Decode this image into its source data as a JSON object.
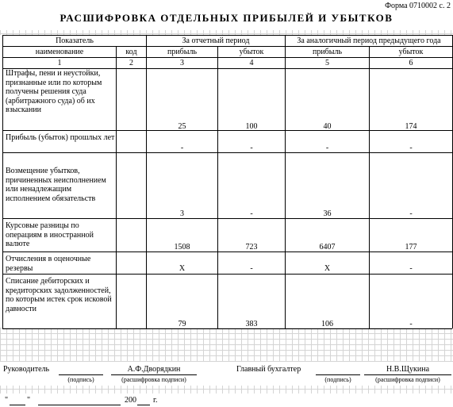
{
  "form_code": "Форма 0710002 с. 2",
  "title": "РАСШИФРОВКА ОТДЕЛЬНЫХ ПРИБЫЛЕЙ И УБЫТКОВ",
  "header": {
    "indicator": "Показатель",
    "name": "наименование",
    "code": "код",
    "current_period": "За отчетный период",
    "prior_period": "За аналогичный период предыдущего года",
    "profit": "прибыль",
    "loss": "убыток",
    "col_numbers": [
      "1",
      "2",
      "3",
      "4",
      "5",
      "6"
    ]
  },
  "rows": [
    {
      "name": "Штрафы, пени и неустойки, признанные или по которым получены решения суда (арбитражного суда) об их взыскании",
      "code": "",
      "cur_profit": "25",
      "cur_loss": "100",
      "prev_profit": "40",
      "prev_loss": "174"
    },
    {
      "name": "Прибыль (убыток) прошлых лет",
      "code": "",
      "cur_profit": "-",
      "cur_loss": "-",
      "prev_profit": "-",
      "prev_loss": "-"
    },
    {
      "name": "Возмещение убытков, причиненных неисполнением или ненадлежащим исполнением обязательств",
      "code": "",
      "cur_profit": "3",
      "cur_loss": "-",
      "prev_profit": "36",
      "prev_loss": "-"
    },
    {
      "name": "Курсовые разницы по операциям в иностранной валюте",
      "code": "",
      "cur_profit": "1508",
      "cur_loss": "723",
      "prev_profit": "6407",
      "prev_loss": "177"
    },
    {
      "name": "Отчисления в оценочные резервы",
      "code": "",
      "cur_profit": "Х",
      "cur_loss": "-",
      "prev_profit": "Х",
      "prev_loss": "-"
    },
    {
      "name": "Списание дебиторских и кредиторских задолженностей, по которым истек срок исковой давности",
      "code": "",
      "cur_profit": "79",
      "cur_loss": "383",
      "prev_profit": "106",
      "prev_loss": "-"
    }
  ],
  "footer": {
    "head_label": "Руководитель",
    "head_name": "А.Ф.Дворядкин",
    "chief_accountant_label": "Главный бухгалтер",
    "chief_accountant_name": "Н.В.Щукина",
    "signature_caption": "(подпись)",
    "decoding_caption": "(расшифровка подписи)",
    "quote_open": "\"",
    "quote_close": "\"",
    "year_prefix": "200",
    "year_suffix": "г."
  }
}
